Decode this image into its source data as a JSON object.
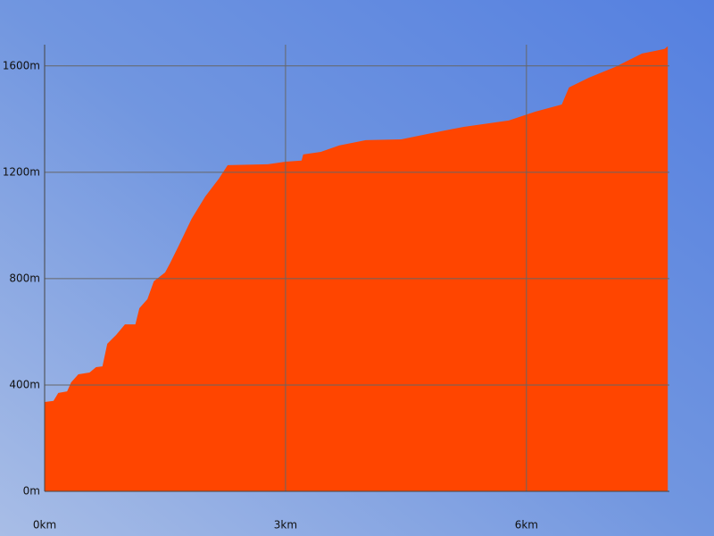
{
  "chart_data": {
    "type": "area",
    "color": "#ff4500",
    "grid": true,
    "x": [
      0,
      0.11,
      0.17,
      0.28,
      0.33,
      0.42,
      0.56,
      0.64,
      0.72,
      0.78,
      0.89,
      1.0,
      1.13,
      1.18,
      1.28,
      1.36,
      1.5,
      1.56,
      1.67,
      1.83,
      2.0,
      2.17,
      2.28,
      2.78,
      3.0,
      3.2,
      3.22,
      3.44,
      3.67,
      4.0,
      4.44,
      4.78,
      5.22,
      5.78,
      6.11,
      6.44,
      6.53,
      6.78,
      7.11,
      7.44,
      7.56,
      7.72,
      7.76
    ],
    "values": [
      336,
      340,
      370,
      376,
      410,
      440,
      447,
      467,
      470,
      555,
      588,
      628,
      628,
      689,
      723,
      790,
      823,
      857,
      924,
      1025,
      1109,
      1176,
      1227,
      1230,
      1240,
      1244,
      1267,
      1277,
      1301,
      1321,
      1324,
      1345,
      1371,
      1395,
      1428,
      1455,
      1519,
      1556,
      1597,
      1647,
      1654,
      1664,
      1674
    ],
    "xlim": [
      0,
      7.78
    ],
    "ylim": [
      0,
      1680
    ],
    "xticks": [
      {
        "value": 0,
        "label": "0km"
      },
      {
        "value": 3,
        "label": "3km"
      },
      {
        "value": 6,
        "label": "6km"
      }
    ],
    "yticks": [
      {
        "value": 0,
        "label": "0m"
      },
      {
        "value": 400,
        "label": "400m"
      },
      {
        "value": 800,
        "label": "800m"
      },
      {
        "value": 1200,
        "label": "1200m"
      },
      {
        "value": 1600,
        "label": "1600m"
      }
    ]
  }
}
